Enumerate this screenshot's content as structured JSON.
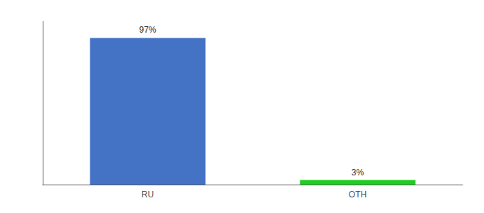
{
  "chart_data": {
    "type": "bar",
    "categories": [
      "RU",
      "OTH"
    ],
    "values": [
      97,
      3
    ],
    "value_labels": [
      "97%",
      "3%"
    ],
    "colors": [
      "#4472c4",
      "#22cc22"
    ],
    "ylim": [
      0,
      108
    ],
    "grid": false,
    "data_labels": true,
    "tick_labels": "x"
  }
}
